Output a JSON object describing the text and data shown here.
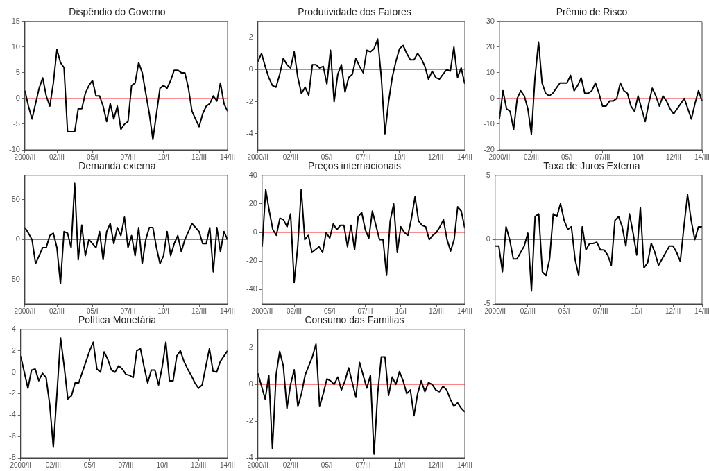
{
  "chart_data": [
    {
      "type": "line",
      "title": "Dispêndio do Governo",
      "categories": [
        "2000/II",
        null,
        null,
        null,
        null,
        null,
        null,
        null,
        null,
        "02/III",
        null,
        null,
        null,
        null,
        null,
        null,
        null,
        null,
        null,
        "05/I",
        null,
        null,
        null,
        null,
        null,
        null,
        null,
        null,
        null,
        "07/III",
        null,
        null,
        null,
        null,
        null,
        null,
        null,
        null,
        null,
        "10/I",
        null,
        null,
        null,
        null,
        null,
        null,
        null,
        null,
        null,
        "12/III",
        null,
        null,
        null,
        null,
        null,
        null,
        null,
        "14/III"
      ],
      "marker": "none",
      "line_style": "solid",
      "legend": false,
      "series": [
        {
          "color": "#000000",
          "values": [
            1.5,
            -1.5,
            -4,
            -1,
            2,
            4,
            0.5,
            -1.5,
            3,
            9.5,
            7,
            6,
            -6.5,
            -6.5,
            -6.5,
            -2,
            -2,
            1,
            2.5,
            3.5,
            0.5,
            0.5,
            -1.5,
            -4.5,
            -1,
            -4,
            -1.5,
            -6,
            -5,
            -4.5,
            2.5,
            3,
            7,
            5,
            1,
            -3,
            -8,
            -3,
            2,
            2.5,
            2,
            3.5,
            5.5,
            5.5,
            5,
            5,
            2,
            -2.5,
            -4,
            -5.5,
            -3,
            -1.5,
            -1,
            0.5,
            -0.5,
            3,
            -1,
            -2.5
          ]
        }
      ],
      "ylim": [
        -10,
        15
      ],
      "yticks": [
        -10,
        -5,
        0,
        5,
        10,
        15
      ],
      "ref_lines": [
        {
          "axis": "y",
          "value": 0,
          "color": "#ff4040"
        }
      ]
    },
    {
      "type": "line",
      "title": "Produtividade dos Fatores",
      "categories": [
        "2000/II",
        null,
        null,
        null,
        null,
        null,
        null,
        null,
        null,
        "02/III",
        null,
        null,
        null,
        null,
        null,
        null,
        null,
        null,
        null,
        "05/I",
        null,
        null,
        null,
        null,
        null,
        null,
        null,
        null,
        null,
        "07/III",
        null,
        null,
        null,
        null,
        null,
        null,
        null,
        null,
        null,
        "10/I",
        null,
        null,
        null,
        null,
        null,
        null,
        null,
        null,
        null,
        "12/III",
        null,
        null,
        null,
        null,
        null,
        null,
        null,
        "14/III"
      ],
      "marker": "none",
      "line_style": "solid",
      "legend": false,
      "series": [
        {
          "color": "#000000",
          "values": [
            0.5,
            1,
            0.2,
            -0.5,
            -1,
            -1.1,
            -0.3,
            0.7,
            0.3,
            0.1,
            1.1,
            -0.5,
            -1.5,
            -1.1,
            -1.6,
            0.3,
            0.3,
            0.1,
            0.2,
            -0.9,
            1.2,
            -2,
            -0.3,
            0.3,
            -1.4,
            -0.5,
            -0.3,
            0.7,
            0.2,
            -0.2,
            1.2,
            1.1,
            1.3,
            1.9,
            -0.5,
            -4,
            -2,
            -0.5,
            0.5,
            1.3,
            1.5,
            1,
            0.6,
            0.6,
            1,
            0.7,
            0.2,
            -0.6,
            -0.1,
            -0.5,
            -0.6,
            -0.3,
            0,
            -0.1,
            1.4,
            -0.5,
            0.1,
            -0.9
          ]
        }
      ],
      "ylim": [
        -5,
        3
      ],
      "yticks": [
        -4,
        -2,
        0,
        2
      ],
      "ref_lines": [
        {
          "axis": "y",
          "value": 0,
          "color": "#ff4040"
        }
      ]
    },
    {
      "type": "line",
      "title": "Prêmio de Risco",
      "categories": [
        "2000/II",
        null,
        null,
        null,
        null,
        null,
        null,
        null,
        null,
        "02/III",
        null,
        null,
        null,
        null,
        null,
        null,
        null,
        null,
        null,
        "05/I",
        null,
        null,
        null,
        null,
        null,
        null,
        null,
        null,
        null,
        "07/III",
        null,
        null,
        null,
        null,
        null,
        null,
        null,
        null,
        null,
        "10/I",
        null,
        null,
        null,
        null,
        null,
        null,
        null,
        null,
        null,
        "12/III",
        null,
        null,
        null,
        null,
        null,
        null,
        null,
        "14/III"
      ],
      "marker": "none",
      "line_style": "solid",
      "legend": false,
      "series": [
        {
          "color": "#000000",
          "values": [
            -8,
            3,
            -4,
            -5,
            -12,
            0,
            3,
            1,
            -4,
            -14,
            8,
            22,
            6,
            2,
            1,
            2,
            4,
            6,
            6,
            6,
            9,
            3,
            5,
            8,
            2,
            2,
            3,
            6,
            2,
            -3,
            -3,
            -1,
            -1,
            0,
            6,
            3,
            2,
            -3,
            -5,
            1,
            -4,
            -9,
            -2,
            4,
            1,
            -3,
            1,
            -1,
            -4,
            -6,
            -4,
            -2,
            0,
            -4,
            -8,
            -2,
            3,
            -1
          ]
        }
      ],
      "ylim": [
        -20,
        30
      ],
      "yticks": [
        -20,
        -10,
        0,
        10,
        20,
        30
      ],
      "ref_lines": [
        {
          "axis": "y",
          "value": 0,
          "color": "#ff4040"
        }
      ]
    },
    {
      "type": "line",
      "title": "Demanda externa",
      "categories": [
        "2000/II",
        null,
        null,
        null,
        null,
        null,
        null,
        null,
        null,
        "02/III",
        null,
        null,
        null,
        null,
        null,
        null,
        null,
        null,
        null,
        "05/I",
        null,
        null,
        null,
        null,
        null,
        null,
        null,
        null,
        null,
        "07/III",
        null,
        null,
        null,
        null,
        null,
        null,
        null,
        null,
        null,
        "10/I",
        null,
        null,
        null,
        null,
        null,
        null,
        null,
        null,
        null,
        "12/III",
        null,
        null,
        null,
        null,
        null,
        null,
        null,
        "14/III"
      ],
      "marker": "none",
      "line_style": "solid",
      "legend": false,
      "series": [
        {
          "color": "#000000",
          "values": [
            15,
            8,
            0,
            -30,
            -20,
            -10,
            -10,
            5,
            8,
            -10,
            -55,
            10,
            8,
            -10,
            70,
            -25,
            18,
            -20,
            0,
            -5,
            -10,
            10,
            -25,
            10,
            20,
            -5,
            15,
            5,
            28,
            -10,
            5,
            -20,
            15,
            -30,
            0,
            15,
            15,
            -10,
            -30,
            -20,
            10,
            -20,
            -5,
            5,
            -15,
            0,
            10,
            20,
            15,
            10,
            -5,
            -5,
            15,
            -40,
            15,
            -15,
            10,
            0
          ]
        }
      ],
      "ylim": [
        -80,
        80
      ],
      "yticks": [
        -50,
        0,
        50
      ],
      "ref_lines": [
        {
          "axis": "y",
          "value": 0,
          "color": "#ff4040"
        }
      ]
    },
    {
      "type": "line",
      "title": "Preços internacionais",
      "categories": [
        "2000/II",
        null,
        null,
        null,
        null,
        null,
        null,
        null,
        null,
        "02/III",
        null,
        null,
        null,
        null,
        null,
        null,
        null,
        null,
        null,
        "05/I",
        null,
        null,
        null,
        null,
        null,
        null,
        null,
        null,
        null,
        "07/III",
        null,
        null,
        null,
        null,
        null,
        null,
        null,
        null,
        null,
        "10/I",
        null,
        null,
        null,
        null,
        null,
        null,
        null,
        null,
        null,
        "12/III",
        null,
        null,
        null,
        null,
        null,
        null,
        null,
        "14/III"
      ],
      "marker": "none",
      "line_style": "solid",
      "legend": false,
      "series": [
        {
          "color": "#000000",
          "values": [
            -10,
            30,
            15,
            2,
            -2,
            10,
            9,
            4,
            13,
            -35,
            -10,
            30,
            -5,
            -2,
            -14,
            -12,
            -10,
            -14,
            0,
            -4,
            6,
            2,
            5,
            5,
            -10,
            5,
            -12,
            11,
            14,
            2,
            -4,
            15,
            5,
            -5,
            -5,
            -30,
            8,
            20,
            -14,
            4,
            0,
            -2,
            10,
            25,
            8,
            5,
            4,
            -5,
            -2,
            0,
            4,
            9,
            -5,
            -13,
            -5,
            18,
            15,
            3
          ]
        }
      ],
      "ylim": [
        -50,
        40
      ],
      "yticks": [
        -40,
        -20,
        0,
        20,
        40
      ],
      "ref_lines": [
        {
          "axis": "y",
          "value": 0,
          "color": "#ff4040"
        }
      ]
    },
    {
      "type": "line",
      "title": "Taxa de Juros Externa",
      "categories": [
        "2000/II",
        null,
        null,
        null,
        null,
        null,
        null,
        null,
        null,
        "02/III",
        null,
        null,
        null,
        null,
        null,
        null,
        null,
        null,
        null,
        "05/I",
        null,
        null,
        null,
        null,
        null,
        null,
        null,
        null,
        null,
        "07/III",
        null,
        null,
        null,
        null,
        null,
        null,
        null,
        null,
        null,
        "10/I",
        null,
        null,
        null,
        null,
        null,
        null,
        null,
        null,
        null,
        "12/III",
        null,
        null,
        null,
        null,
        null,
        null,
        null,
        "14/III"
      ],
      "marker": "none",
      "line_style": "solid",
      "legend": false,
      "series": [
        {
          "color": "#000000",
          "values": [
            -0.5,
            -0.5,
            -2.5,
            1,
            0,
            -1.5,
            -1.5,
            -1,
            -0.5,
            0.5,
            -4,
            1.8,
            2,
            -2.5,
            -2.8,
            -1.5,
            2,
            1.8,
            2.8,
            1.5,
            0.8,
            1,
            -1.5,
            -2.8,
            1,
            -0.8,
            -0.3,
            -0.3,
            -0.2,
            -0.8,
            -0.8,
            -1.2,
            -2,
            1.5,
            1.8,
            1,
            -0.5,
            2,
            0.5,
            -1.2,
            2.5,
            -2.2,
            -1.8,
            -0.3,
            -1,
            -2,
            -1.5,
            -1,
            -0.5,
            -0.5,
            -1,
            -1.7,
            1,
            3.5,
            1.5,
            0,
            1,
            1
          ]
        }
      ],
      "ylim": [
        -5,
        5
      ],
      "yticks": [
        -5,
        0,
        5
      ],
      "ref_lines": [
        {
          "axis": "y",
          "value": 0,
          "color": "#ff4040"
        }
      ]
    },
    {
      "type": "line",
      "title": "Política Monetária",
      "categories": [
        "2000/II",
        null,
        null,
        null,
        null,
        null,
        null,
        null,
        null,
        "02/III",
        null,
        null,
        null,
        null,
        null,
        null,
        null,
        null,
        null,
        "05/I",
        null,
        null,
        null,
        null,
        null,
        null,
        null,
        null,
        null,
        "07/III",
        null,
        null,
        null,
        null,
        null,
        null,
        null,
        null,
        null,
        "10/I",
        null,
        null,
        null,
        null,
        null,
        null,
        null,
        null,
        null,
        "12/III",
        null,
        null,
        null,
        null,
        null,
        null,
        null,
        "14/III"
      ],
      "marker": "none",
      "line_style": "solid",
      "legend": false,
      "series": [
        {
          "color": "#000000",
          "values": [
            1.5,
            0,
            -1.5,
            0.2,
            0.3,
            -0.8,
            -0.1,
            -0.5,
            -3,
            -7,
            -2,
            3.2,
            0.5,
            -2.5,
            -2.2,
            -1,
            -1,
            0,
            1,
            2,
            2.8,
            0.3,
            0,
            1.9,
            1.2,
            0.2,
            0,
            0.6,
            0.3,
            -0.2,
            -0.3,
            -0.5,
            2,
            2.2,
            0.5,
            -1,
            0.2,
            0.2,
            -1.2,
            0.5,
            2.8,
            -0.8,
            -0.8,
            1.5,
            2,
            1,
            0.3,
            -0.3,
            -1,
            -1.5,
            -1.2,
            0.5,
            2.2,
            0.1,
            0,
            1,
            1.5,
            2
          ]
        }
      ],
      "ylim": [
        -8,
        4
      ],
      "yticks": [
        -8,
        -6,
        -4,
        -2,
        0,
        2,
        4
      ],
      "ref_lines": [
        {
          "axis": "y",
          "value": 0,
          "color": "#ff4040"
        }
      ]
    },
    {
      "type": "line",
      "title": "Consumo das Famílias",
      "categories": [
        "2000/II",
        null,
        null,
        null,
        null,
        null,
        null,
        null,
        null,
        "02/III",
        null,
        null,
        null,
        null,
        null,
        null,
        null,
        null,
        null,
        "05/I",
        null,
        null,
        null,
        null,
        null,
        null,
        null,
        null,
        null,
        "07/III",
        null,
        null,
        null,
        null,
        null,
        null,
        null,
        null,
        null,
        "10/I",
        null,
        null,
        null,
        null,
        null,
        null,
        null,
        null,
        null,
        "12/III",
        null,
        null,
        null,
        null,
        null,
        null,
        null,
        "14/III"
      ],
      "marker": "none",
      "line_style": "solid",
      "legend": false,
      "series": [
        {
          "color": "#000000",
          "values": [
            0.6,
            -0.1,
            -0.8,
            0.5,
            -3.5,
            0.5,
            1.8,
            1,
            -1.3,
            0,
            0.8,
            -1.2,
            -0.5,
            0.5,
            1,
            1.5,
            2.2,
            -1.2,
            -0.5,
            0.3,
            0.2,
            0,
            0.4,
            -0.3,
            0.2,
            0.9,
            0.1,
            -0.7,
            1.2,
            0.5,
            -0.2,
            0.5,
            -3.8,
            -0.5,
            1.5,
            1.5,
            -0.6,
            0.4,
            0,
            0.7,
            0.2,
            -0.5,
            -0.3,
            -1.7,
            -0.5,
            0.2,
            -0.4,
            0.1,
            0,
            -0.3,
            -0.4,
            -0.1,
            -0.3,
            -0.8,
            -1.2,
            -1,
            -1.3,
            -1.5
          ]
        }
      ],
      "ylim": [
        -4,
        3
      ],
      "yticks": [
        -4,
        -2,
        0,
        2
      ],
      "ref_lines": [
        {
          "axis": "y",
          "value": 0,
          "color": "#ff4040"
        }
      ]
    }
  ]
}
